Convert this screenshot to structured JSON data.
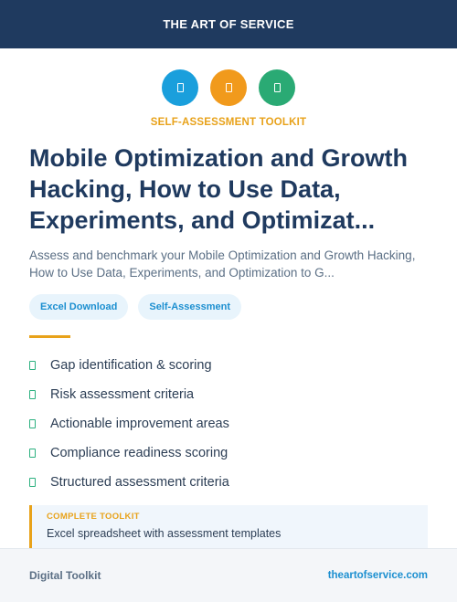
{
  "header": {
    "title": "THE ART OF SERVICE"
  },
  "icons": [
    {
      "name": "document-icon",
      "color": "#1a9fdc"
    },
    {
      "name": "document-icon",
      "color": "#f19a1c"
    },
    {
      "name": "document-icon",
      "color": "#2aaa74"
    }
  ],
  "kicker": "SELF-ASSESSMENT TOOLKIT",
  "title": "Mobile Optimization and Growth Hacking, How to Use Data, Experiments, and Optimizat...",
  "subtitle": "Assess and benchmark your Mobile Optimization and Growth Hacking, How to Use Data, Experiments, and Optimization to G...",
  "tags": [
    "Excel Download",
    "Self-Assessment"
  ],
  "features": [
    "Gap identification & scoring",
    "Risk assessment criteria",
    "Actionable improvement areas",
    "Compliance readiness scoring",
    "Structured assessment criteria"
  ],
  "toolkit": {
    "label": "COMPLETE TOOLKIT",
    "description": "Excel spreadsheet with assessment templates"
  },
  "footer": {
    "left": "Digital Toolkit",
    "right": "theartofservice.com"
  }
}
